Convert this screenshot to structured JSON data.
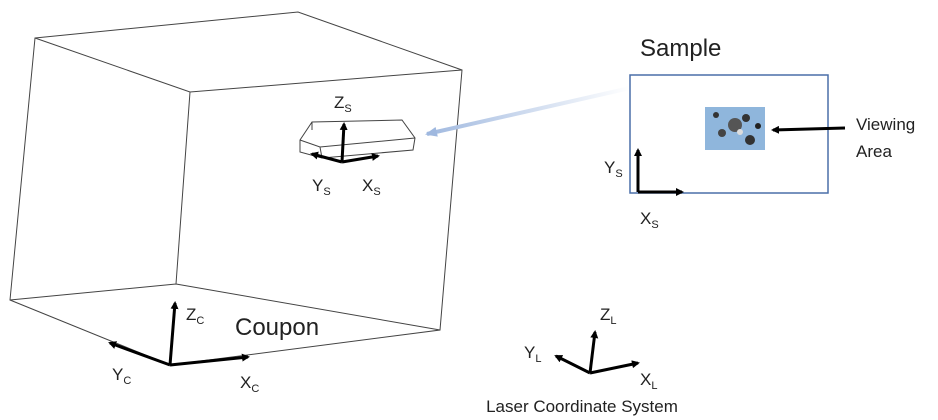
{
  "coupon": {
    "label": "Coupon",
    "axes": {
      "z": {
        "letter": "Z",
        "sub": "C"
      },
      "x": {
        "letter": "X",
        "sub": "C"
      },
      "y": {
        "letter": "Y",
        "sub": "C"
      }
    }
  },
  "sample": {
    "label": "Sample",
    "axes_3d": {
      "z": {
        "letter": "Z",
        "sub": "S"
      },
      "x": {
        "letter": "X",
        "sub": "S"
      },
      "y": {
        "letter": "Y",
        "sub": "S"
      }
    },
    "axes_2d": {
      "x": {
        "letter": "X",
        "sub": "S"
      },
      "y": {
        "letter": "Y",
        "sub": "S"
      }
    }
  },
  "viewing_area": {
    "label": [
      "Viewing",
      "Area"
    ]
  },
  "laser": {
    "label": "Laser Coordinate System",
    "axes": {
      "z": {
        "letter": "Z",
        "sub": "L"
      },
      "x": {
        "letter": "X",
        "sub": "L"
      },
      "y": {
        "letter": "Y",
        "sub": "L"
      }
    }
  }
}
